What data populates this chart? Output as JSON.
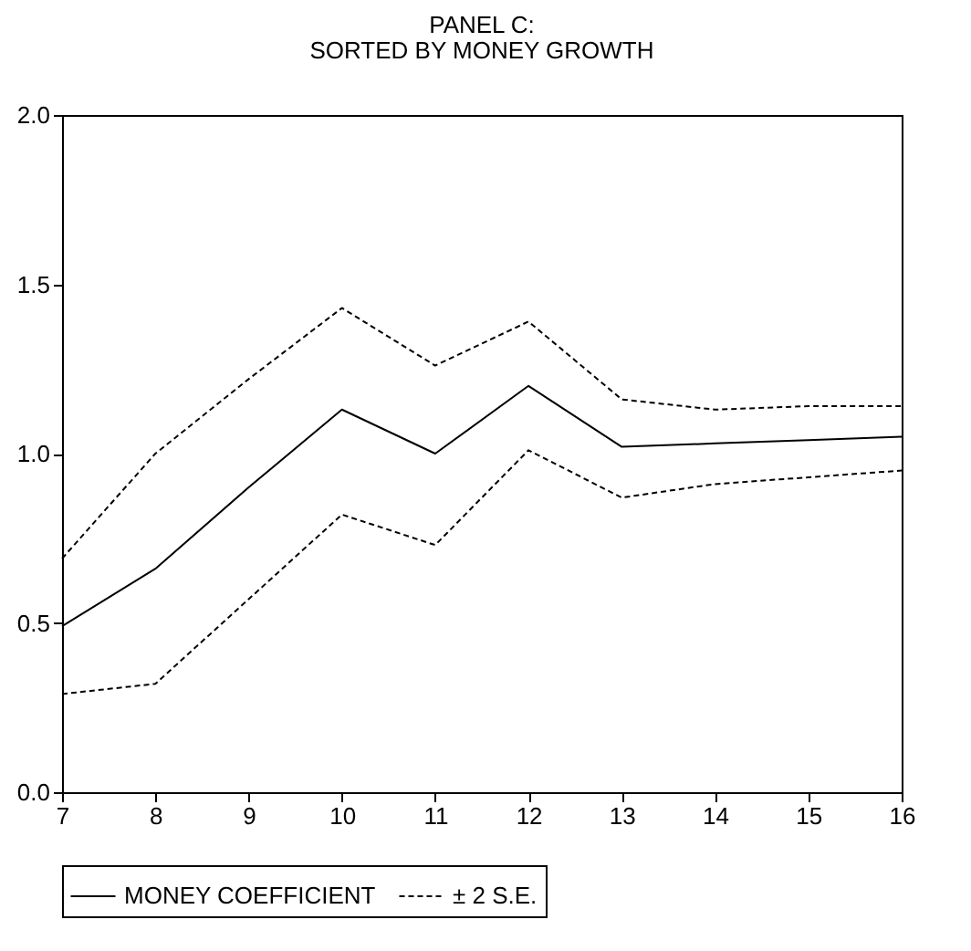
{
  "chart_data": {
    "type": "line",
    "title": "PANEL C:",
    "subtitle": "SORTED BY MONEY GROWTH",
    "x": [
      7,
      8,
      9,
      10,
      11,
      12,
      13,
      14,
      15,
      16
    ],
    "xlim": [
      7,
      16
    ],
    "xticks": [
      7,
      8,
      9,
      10,
      11,
      12,
      13,
      14,
      15,
      16
    ],
    "ylim": [
      0,
      2
    ],
    "yticks": [
      {
        "value": 0,
        "label": "0.0"
      },
      {
        "value": 0.5,
        "label": "0.5"
      },
      {
        "value": 1,
        "label": "1.0"
      },
      {
        "value": 1.5,
        "label": "1.5"
      },
      {
        "value": 2,
        "label": "2.0"
      }
    ],
    "grid": false,
    "legend": "bottom",
    "series": [
      {
        "name": "MONEY COEFFICIENT",
        "color": "#000000",
        "line_style": "solid",
        "values": [
          0.49,
          0.66,
          0.9,
          1.13,
          1.0,
          1.2,
          1.02,
          1.03,
          1.04,
          1.05
        ]
      },
      {
        "name": "± 2 S.E.",
        "color": "#000000",
        "line_style": "dashed",
        "values": [
          0.69,
          1.0,
          1.22,
          1.43,
          1.26,
          1.39,
          1.16,
          1.13,
          1.14,
          1.14
        ]
      },
      {
        "color": "#000000",
        "line_style": "dashed",
        "values": [
          0.29,
          0.32,
          0.57,
          0.82,
          0.73,
          1.01,
          0.87,
          0.91,
          0.93,
          0.95
        ]
      }
    ]
  }
}
